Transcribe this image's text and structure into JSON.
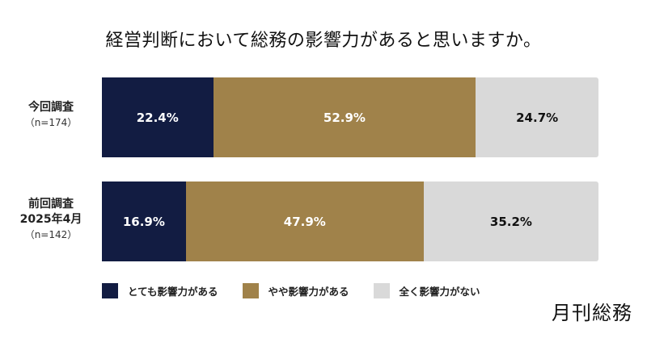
{
  "title": "経営判断において総務の影響力があると思いますか。",
  "colors": {
    "very": "#121c42",
    "somewhat": "#a0824a",
    "none": "#d9d9d9"
  },
  "rows": [
    {
      "label": "今回調査",
      "sublabel": "",
      "n": "（n=174）",
      "segments": [
        {
          "value": 22.4,
          "text": "22.4%"
        },
        {
          "value": 52.9,
          "text": "52.9%"
        },
        {
          "value": 24.7,
          "text": "24.7%"
        }
      ]
    },
    {
      "label": "前回調査",
      "sublabel": "2025年4月",
      "n": "（n=142）",
      "segments": [
        {
          "value": 16.9,
          "text": "16.9%"
        },
        {
          "value": 47.9,
          "text": "47.9%"
        },
        {
          "value": 35.2,
          "text": "35.2%"
        }
      ]
    }
  ],
  "legend": [
    {
      "label": "とても影響力がある",
      "color": "#121c42"
    },
    {
      "label": "やや影響力がある",
      "color": "#a0824a"
    },
    {
      "label": "全く影響力がない",
      "color": "#d9d9d9"
    }
  ],
  "logo": "月刊総務",
  "chart_data": {
    "type": "bar",
    "orientation": "horizontal-stacked-100",
    "title": "経営判断において総務の影響力があると思いますか。",
    "categories": [
      "今回調査 (n=174)",
      "前回調査 2025年4月 (n=142)"
    ],
    "series": [
      {
        "name": "とても影響力がある",
        "values": [
          22.4,
          16.9
        ],
        "color": "#121c42"
      },
      {
        "name": "やや影響力がある",
        "values": [
          52.9,
          47.9
        ],
        "color": "#a0824a"
      },
      {
        "name": "全く影響力がない",
        "values": [
          24.7,
          35.2
        ],
        "color": "#d9d9d9"
      }
    ],
    "xlabel": "",
    "ylabel": "",
    "xlim": [
      0,
      100
    ],
    "grid": false,
    "legend_position": "bottom"
  }
}
